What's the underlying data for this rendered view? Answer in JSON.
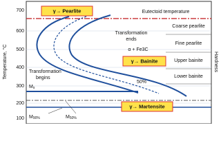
{
  "diagram": {
    "y_axis": {
      "label": "Temperature, °C",
      "ticks": [
        "700",
        "600",
        "500",
        "400",
        "300",
        "200",
        "100"
      ]
    },
    "right_axis": {
      "label": "Hardness"
    },
    "eutectoid": "Eutectoid temperature",
    "boxes": {
      "pearlite": "γ→ Pearlite",
      "bainite": "γ→ Bainite",
      "martensite": "γ→ Martensite"
    },
    "regions": [
      "Coarse pearlite",
      "Fine pearlite",
      "Upper bainite",
      "Lower bainite"
    ],
    "transformation_ends": [
      "Transformation",
      "ends"
    ],
    "transformation_begins": [
      "Transformation",
      "begins"
    ],
    "phases": "α + Fe3C",
    "fifty": "50%",
    "ms": {
      "main": "M",
      "sub": "s"
    },
    "m90": {
      "main": "M",
      "sub": "90%"
    },
    "m50": {
      "main": "M",
      "sub": "50%"
    }
  }
}
